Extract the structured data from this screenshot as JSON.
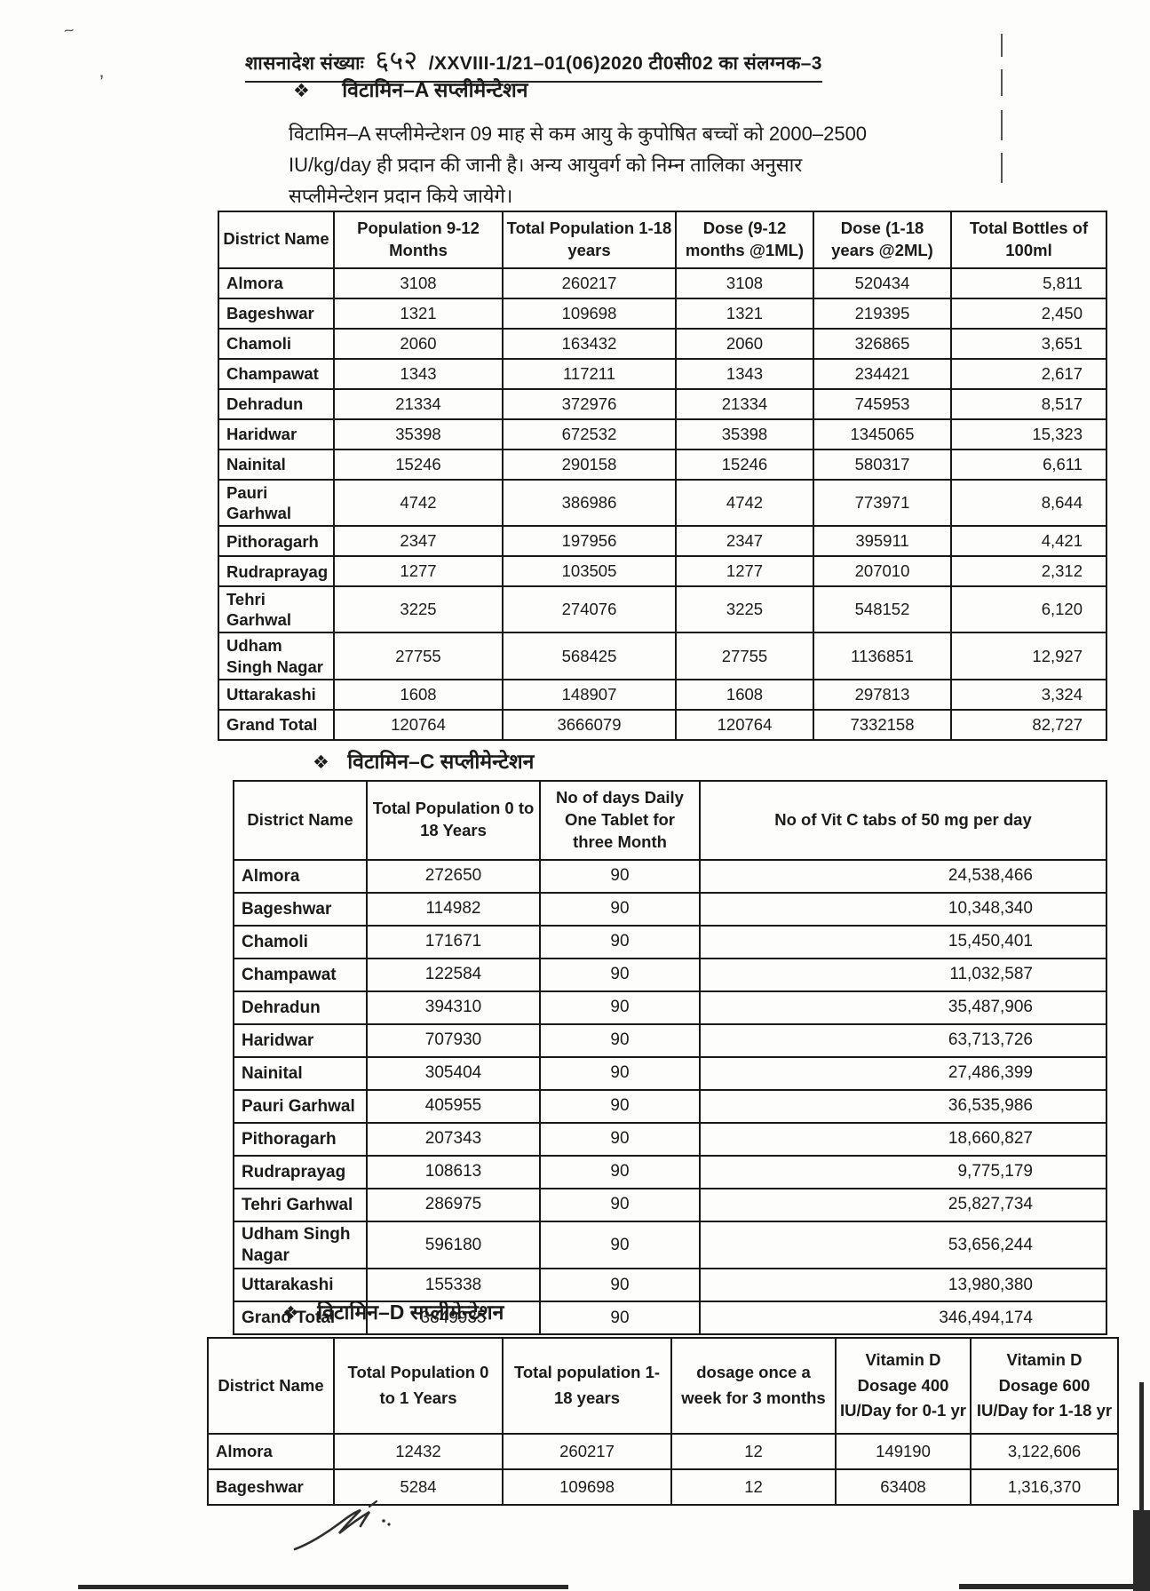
{
  "header": {
    "reference_prefix": "शासनादेश संख्याः",
    "reference_number": "६५२",
    "reference_suffix": "/XXVIII-1/21–01(06)2020 टी0सी02  का संलग्नक–3"
  },
  "sections": {
    "vitamin_a": {
      "bullet": "❖",
      "heading": "विटामिन–A सप्लीमेन्टेशन",
      "paragraph_lines": [
        "विटामिन–A सप्लीमेन्टेशन 09 माह से कम आयु के कुपोषित बच्चों को 2000–2500",
        "IU/kg/day ही प्रदान की जानी है। अन्य आयुवर्ग को निम्न तालिका अनुसार",
        "सप्लीमेन्टेशन प्रदान किये जायेगे।"
      ],
      "table": {
        "headers": [
          "District Name",
          "Population 9-12 Months",
          "Total Population 1-18 years",
          "Dose (9-12 months @1ML)",
          "Dose (1-18 years @2ML)",
          "Total Bottles of 100ml"
        ],
        "rows": [
          [
            "Almora",
            "3108",
            "260217",
            "3108",
            "520434",
            "5,811"
          ],
          [
            "Bageshwar",
            "1321",
            "109698",
            "1321",
            "219395",
            "2,450"
          ],
          [
            "Chamoli",
            "2060",
            "163432",
            "2060",
            "326865",
            "3,651"
          ],
          [
            "Champawat",
            "1343",
            "117211",
            "1343",
            "234421",
            "2,617"
          ],
          [
            "Dehradun",
            "21334",
            "372976",
            "21334",
            "745953",
            "8,517"
          ],
          [
            "Haridwar",
            "35398",
            "672532",
            "35398",
            "1345065",
            "15,323"
          ],
          [
            "Nainital",
            "15246",
            "290158",
            "15246",
            "580317",
            "6,611"
          ],
          [
            "Pauri Garhwal",
            "4742",
            "386986",
            "4742",
            "773971",
            "8,644"
          ],
          [
            "Pithoragarh",
            "2347",
            "197956",
            "2347",
            "395911",
            "4,421"
          ],
          [
            "Rudraprayag",
            "1277",
            "103505",
            "1277",
            "207010",
            "2,312"
          ],
          [
            "Tehri Garhwal",
            "3225",
            "274076",
            "3225",
            "548152",
            "6,120"
          ],
          [
            "Udham Singh Nagar",
            "27755",
            "568425",
            "27755",
            "1136851",
            "12,927"
          ],
          [
            "Uttarakashi",
            "1608",
            "148907",
            "1608",
            "297813",
            "3,324"
          ],
          [
            "Grand Total",
            "120764",
            "3666079",
            "120764",
            "7332158",
            "82,727"
          ]
        ]
      }
    },
    "vitamin_c": {
      "bullet": "❖",
      "heading": "विटामिन–C सप्लीमेन्टेशन",
      "table": {
        "headers": [
          "District Name",
          "Total Population 0 to 18 Years",
          "No of days Daily One Tablet for three Month",
          "No of Vit C tabs of  50 mg per day"
        ],
        "rows": [
          [
            "Almora",
            "272650",
            "90",
            "24,538,466"
          ],
          [
            "Bageshwar",
            "114982",
            "90",
            "10,348,340"
          ],
          [
            "Chamoli",
            "171671",
            "90",
            "15,450,401"
          ],
          [
            "Champawat",
            "122584",
            "90",
            "11,032,587"
          ],
          [
            "Dehradun",
            "394310",
            "90",
            "35,487,906"
          ],
          [
            "Haridwar",
            "707930",
            "90",
            "63,713,726"
          ],
          [
            "Nainital",
            "305404",
            "90",
            "27,486,399"
          ],
          [
            "Pauri Garhwal",
            "405955",
            "90",
            "36,535,986"
          ],
          [
            "Pithoragarh",
            "207343",
            "90",
            "18,660,827"
          ],
          [
            "Rudraprayag",
            "108613",
            "90",
            "9,775,179"
          ],
          [
            "Tehri Garhwal",
            "286975",
            "90",
            "25,827,734"
          ],
          [
            "Udham Singh Nagar",
            "596180",
            "90",
            "53,656,244"
          ],
          [
            "Uttarakashi",
            "155338",
            "90",
            "13,980,380"
          ],
          [
            "Grand Total",
            "3849935",
            "90",
            "346,494,174"
          ]
        ]
      }
    },
    "vitamin_d": {
      "bullet": "❖",
      "heading": "विटामिन–D सप्लीमेन्टेशन",
      "table": {
        "headers": [
          "District Name",
          "Total Population 0 to 1 Years",
          "Total population 1-18 years",
          "dosage once a week for 3 months",
          "Vitamin D Dosage  400 IU/Day for 0-1 yr",
          "Vitamin D Dosage  600 IU/Day for 1-18 yr"
        ],
        "rows": [
          [
            "Almora",
            "12432",
            "260217",
            "12",
            "149190",
            "3,122,606"
          ],
          [
            "Bageshwar",
            "5284",
            "109698",
            "12",
            "63408",
            "1,316,370"
          ]
        ]
      }
    }
  }
}
